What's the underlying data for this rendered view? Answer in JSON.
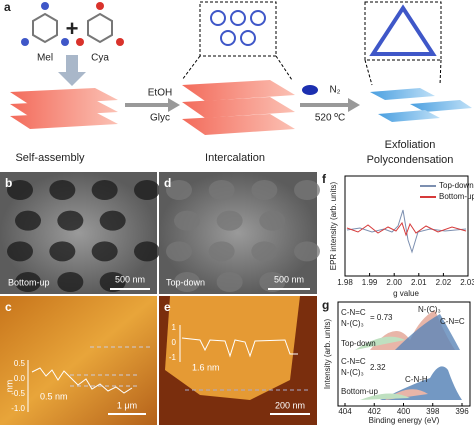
{
  "panel_a": {
    "label": "a",
    "mel": "Mel",
    "cya": "Cya",
    "plus": "+",
    "etoh": "EtOH",
    "glyc": "Glyc",
    "n2": "N₂",
    "temp": "520 ºC",
    "step1": "Self-assembly",
    "step2": "Intercalation",
    "step3a": "Exfoliation",
    "step3b": "Polycondensation"
  },
  "panel_b": {
    "label": "b",
    "name": "Bottom-up",
    "scale": "500 nm"
  },
  "panel_d": {
    "label": "d",
    "name": "Top-down",
    "scale": "500 nm"
  },
  "panel_c": {
    "label": "c",
    "axis": "nm",
    "ticks": [
      "0.5",
      "0.0",
      "-0.5",
      "-1.0"
    ],
    "height": "0.5 nm",
    "scale": "1 μm"
  },
  "panel_e": {
    "label": "e",
    "ticks": [
      "1",
      "0",
      "-1"
    ],
    "height": "1.6 nm",
    "scale": "200 nm"
  },
  "panel_f": {
    "label": "f",
    "ylabel": "EPR intensity (arb. units)",
    "xlabel": "g value",
    "legend": [
      "Top-down",
      "Bottom-up"
    ],
    "xticks": [
      "1.98",
      "1.99",
      "2.00",
      "2.01",
      "2.02",
      "2.03"
    ]
  },
  "panel_g": {
    "label": "g",
    "ylabel": "Intensity (arb. units)",
    "xlabel": "Binding energy (eV)",
    "xticks": [
      "404",
      "402",
      "400",
      "398",
      "396"
    ],
    "top": {
      "ratio_num": "C-N=C",
      "ratio_den": "N-(C)₃",
      "ratio": "= 0.73",
      "peak1": "N-(C)₃",
      "peak2": "C-N=C",
      "name": "Top-down"
    },
    "bottom": {
      "ratio_num": "C-N=C",
      "ratio_den": "N-(C)₃",
      "ratio": "2.32",
      "peak3": "C-N-H",
      "name": "Bottom-up"
    }
  }
}
